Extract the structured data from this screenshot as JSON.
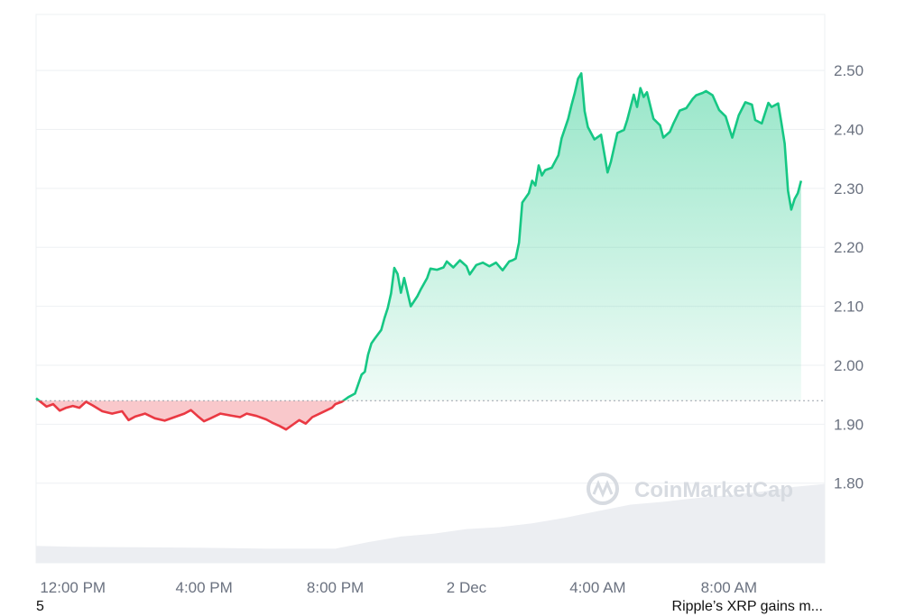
{
  "watermark": "CoinMarketCap",
  "footer": {
    "left_text": "5",
    "right_text": "Ripple’s XRP gains m..."
  },
  "colors": {
    "up": "#16c784",
    "down": "#ea3943",
    "grid": "#eef0f3",
    "volume": "#eceef2"
  },
  "chart_data": {
    "type": "area",
    "title": "",
    "xlabel": "",
    "ylabel": "",
    "x_start": "12:00 PM",
    "x_tick_labels": [
      "12:00 PM",
      "4:00 PM",
      "8:00 PM",
      "2 Dec",
      "4:00 AM",
      "8:00 AM"
    ],
    "x_tick_hours": [
      12,
      16,
      20,
      24,
      28,
      32
    ],
    "y_tick_labels": [
      "2.50",
      "2.40",
      "2.30",
      "2.20",
      "2.10",
      "2.00",
      "1.90",
      "1.80"
    ],
    "y_ticks": [
      2.5,
      2.4,
      2.3,
      2.2,
      2.1,
      2.0,
      1.9,
      1.8
    ],
    "ylim": [
      1.665,
      2.595
    ],
    "xlim_hours": [
      10.88,
      34.92
    ],
    "baseline": 1.94,
    "grid": true,
    "series": [
      {
        "points": [
          [
            10.88,
            1.944
          ],
          [
            11.2,
            1.93
          ],
          [
            11.4,
            1.934
          ],
          [
            11.6,
            1.923
          ],
          [
            11.8,
            1.928
          ],
          [
            12.0,
            1.931
          ],
          [
            12.2,
            1.928
          ],
          [
            12.4,
            1.938
          ],
          [
            12.6,
            1.932
          ],
          [
            12.9,
            1.922
          ],
          [
            13.2,
            1.918
          ],
          [
            13.5,
            1.922
          ],
          [
            13.7,
            1.907
          ],
          [
            13.9,
            1.913
          ],
          [
            14.2,
            1.918
          ],
          [
            14.5,
            1.91
          ],
          [
            14.8,
            1.906
          ],
          [
            15.1,
            1.912
          ],
          [
            15.4,
            1.918
          ],
          [
            15.6,
            1.924
          ],
          [
            15.8,
            1.914
          ],
          [
            16.0,
            1.905
          ],
          [
            16.2,
            1.91
          ],
          [
            16.5,
            1.918
          ],
          [
            16.8,
            1.915
          ],
          [
            17.1,
            1.912
          ],
          [
            17.3,
            1.918
          ],
          [
            17.6,
            1.914
          ],
          [
            17.9,
            1.908
          ],
          [
            18.1,
            1.902
          ],
          [
            18.3,
            1.897
          ],
          [
            18.5,
            1.891
          ],
          [
            18.7,
            1.899
          ],
          [
            18.9,
            1.907
          ],
          [
            19.1,
            1.901
          ],
          [
            19.3,
            1.912
          ],
          [
            19.6,
            1.92
          ],
          [
            19.9,
            1.928
          ],
          [
            20.0,
            1.934
          ],
          [
            20.2,
            1.938
          ],
          [
            20.4,
            1.946
          ],
          [
            20.6,
            1.952
          ],
          [
            20.8,
            1.984
          ],
          [
            20.9,
            1.989
          ],
          [
            21.0,
            2.018
          ],
          [
            21.1,
            2.037
          ],
          [
            21.2,
            2.045
          ],
          [
            21.4,
            2.06
          ],
          [
            21.5,
            2.08
          ],
          [
            21.6,
            2.097
          ],
          [
            21.7,
            2.122
          ],
          [
            21.8,
            2.165
          ],
          [
            21.9,
            2.155
          ],
          [
            22.0,
            2.123
          ],
          [
            22.1,
            2.148
          ],
          [
            22.3,
            2.1
          ],
          [
            22.5,
            2.117
          ],
          [
            22.6,
            2.128
          ],
          [
            22.8,
            2.148
          ],
          [
            22.9,
            2.164
          ],
          [
            23.1,
            2.162
          ],
          [
            23.3,
            2.166
          ],
          [
            23.4,
            2.176
          ],
          [
            23.6,
            2.166
          ],
          [
            23.8,
            2.178
          ],
          [
            24.0,
            2.168
          ],
          [
            24.1,
            2.154
          ],
          [
            24.3,
            2.17
          ],
          [
            24.5,
            2.174
          ],
          [
            24.7,
            2.168
          ],
          [
            24.9,
            2.174
          ],
          [
            25.1,
            2.161
          ],
          [
            25.3,
            2.176
          ],
          [
            25.4,
            2.178
          ],
          [
            25.5,
            2.181
          ],
          [
            25.6,
            2.208
          ],
          [
            25.7,
            2.276
          ],
          [
            25.9,
            2.292
          ],
          [
            26.0,
            2.313
          ],
          [
            26.1,
            2.305
          ],
          [
            26.2,
            2.339
          ],
          [
            26.3,
            2.322
          ],
          [
            26.4,
            2.331
          ],
          [
            26.6,
            2.335
          ],
          [
            26.8,
            2.356
          ],
          [
            26.9,
            2.385
          ],
          [
            27.1,
            2.418
          ],
          [
            27.2,
            2.441
          ],
          [
            27.3,
            2.462
          ],
          [
            27.4,
            2.486
          ],
          [
            27.5,
            2.495
          ],
          [
            27.6,
            2.431
          ],
          [
            27.7,
            2.404
          ],
          [
            27.9,
            2.383
          ],
          [
            28.1,
            2.391
          ],
          [
            28.3,
            2.327
          ],
          [
            28.4,
            2.345
          ],
          [
            28.6,
            2.394
          ],
          [
            28.8,
            2.399
          ],
          [
            28.9,
            2.416
          ],
          [
            29.1,
            2.459
          ],
          [
            29.2,
            2.438
          ],
          [
            29.3,
            2.47
          ],
          [
            29.4,
            2.455
          ],
          [
            29.5,
            2.463
          ],
          [
            29.7,
            2.418
          ],
          [
            29.9,
            2.407
          ],
          [
            30.0,
            2.386
          ],
          [
            30.2,
            2.396
          ],
          [
            30.3,
            2.409
          ],
          [
            30.5,
            2.432
          ],
          [
            30.7,
            2.436
          ],
          [
            30.9,
            2.452
          ],
          [
            31.0,
            2.458
          ],
          [
            31.2,
            2.462
          ],
          [
            31.3,
            2.465
          ],
          [
            31.5,
            2.458
          ],
          [
            31.7,
            2.433
          ],
          [
            31.9,
            2.422
          ],
          [
            32.1,
            2.386
          ],
          [
            32.3,
            2.424
          ],
          [
            32.5,
            2.446
          ],
          [
            32.7,
            2.442
          ],
          [
            32.8,
            2.416
          ],
          [
            33.0,
            2.41
          ],
          [
            33.2,
            2.445
          ],
          [
            33.3,
            2.438
          ],
          [
            33.5,
            2.444
          ],
          [
            33.6,
            2.411
          ],
          [
            33.7,
            2.376
          ],
          [
            33.8,
            2.296
          ],
          [
            33.9,
            2.264
          ],
          [
            34.0,
            2.282
          ],
          [
            34.1,
            2.292
          ],
          [
            34.2,
            2.313
          ]
        ]
      }
    ],
    "volume": {
      "shown_as": "grey area along the bottom, no scale printed",
      "levels": [
        [
          10.88,
          0.18
        ],
        [
          12.0,
          0.17
        ],
        [
          14.0,
          0.165
        ],
        [
          16.0,
          0.16
        ],
        [
          18.0,
          0.15
        ],
        [
          20.0,
          0.15
        ],
        [
          21.0,
          0.22
        ],
        [
          22.0,
          0.28
        ],
        [
          23.0,
          0.31
        ],
        [
          24.0,
          0.36
        ],
        [
          25.0,
          0.38
        ],
        [
          26.0,
          0.42
        ],
        [
          27.0,
          0.48
        ],
        [
          28.0,
          0.55
        ],
        [
          29.0,
          0.62
        ],
        [
          30.0,
          0.65
        ],
        [
          31.0,
          0.69
        ],
        [
          32.0,
          0.72
        ],
        [
          33.0,
          0.76
        ],
        [
          34.0,
          0.81
        ],
        [
          34.92,
          0.84
        ]
      ]
    }
  }
}
